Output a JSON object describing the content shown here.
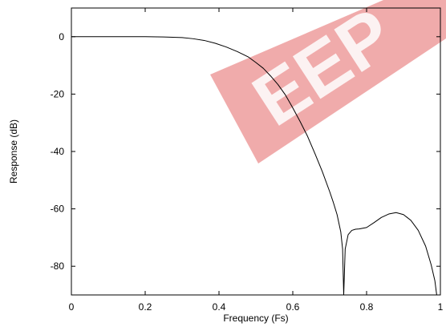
{
  "chart_data": {
    "type": "line",
    "title": "",
    "xlabel": "Frequency (Fs)",
    "ylabel": "Response (dB)",
    "xlim": [
      0,
      1
    ],
    "ylim": [
      -90,
      10
    ],
    "grid": false,
    "legend": "none",
    "x_ticks": [
      0,
      0.2,
      0.4,
      0.6,
      0.8,
      1
    ],
    "x_tick_labels": [
      "0",
      "0.2",
      "0.4",
      "0.6",
      "0.8",
      "1"
    ],
    "y_ticks": [
      0,
      -20,
      -40,
      -60,
      -80
    ],
    "y_tick_labels": [
      "0",
      "-20",
      "-40",
      "-60",
      "-80"
    ],
    "series": [
      {
        "color": "#000000",
        "x": [
          0,
          0.1,
          0.2,
          0.25,
          0.3,
          0.33,
          0.36,
          0.39,
          0.42,
          0.45,
          0.48,
          0.5,
          0.52,
          0.54,
          0.56,
          0.58,
          0.6,
          0.62,
          0.64,
          0.66,
          0.68,
          0.7,
          0.71,
          0.72,
          0.73,
          0.735,
          0.738,
          0.742,
          0.75,
          0.76,
          0.77,
          0.78,
          0.8,
          0.82,
          0.84,
          0.86,
          0.88,
          0.9,
          0.92,
          0.94,
          0.96,
          0.975,
          0.985,
          0.99
        ],
        "values": [
          0,
          0,
          0,
          -0.1,
          -0.3,
          -0.7,
          -1.3,
          -2.3,
          -3.6,
          -5.2,
          -7.1,
          -9.0,
          -11.0,
          -13.7,
          -16.7,
          -20.3,
          -24.8,
          -29.6,
          -34.7,
          -40.7,
          -47.0,
          -54.0,
          -57.8,
          -62.0,
          -68.0,
          -74.0,
          -90.0,
          -74.0,
          -69.0,
          -67.5,
          -67.1,
          -67.0,
          -66.5,
          -64.8,
          -63.0,
          -61.8,
          -61.3,
          -62.0,
          -64.0,
          -67.5,
          -73.0,
          -79.5,
          -85.0,
          -90.0
        ]
      }
    ],
    "watermark_text": "EEP"
  }
}
